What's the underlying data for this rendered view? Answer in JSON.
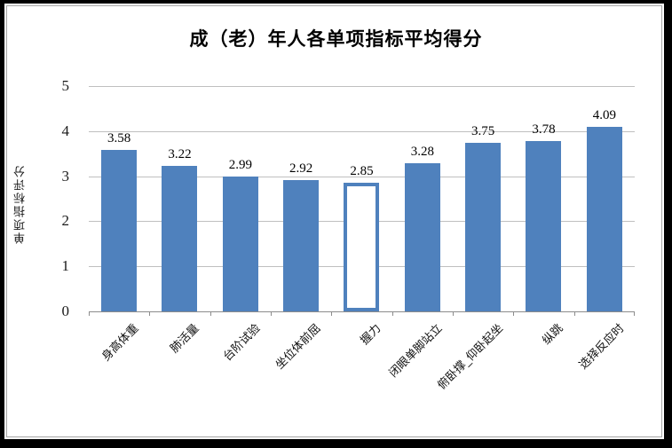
{
  "chart_data": {
    "type": "bar",
    "title": "成（老）年人各单项指标平均得分",
    "ylabel": "单项指标评分",
    "xlabel": "",
    "categories": [
      "身高体重",
      "肺活量",
      "台阶试验",
      "坐位体前屈",
      "握力",
      "闭眼单脚站立",
      "俯卧撑_仰卧起坐",
      "纵跳",
      "选择反应时"
    ],
    "values": [
      3.58,
      3.22,
      2.99,
      2.92,
      2.85,
      3.28,
      3.75,
      3.78,
      4.09
    ],
    "data_labels": [
      "3.58",
      "3.22",
      "2.99",
      "2.92",
      "2.85",
      "3.28",
      "3.75",
      "3.78",
      "4.09"
    ],
    "ylim": [
      0,
      5
    ],
    "y_ticks": [
      0,
      1,
      2,
      3,
      4,
      5
    ],
    "grid": true,
    "legend": "none",
    "highlighted_index": 4,
    "highlighted_category": "握力",
    "highlight_style": "hollow-outline",
    "colors": {
      "bar_fill": "#4f81bd",
      "bar_outline": "#4f81bd",
      "gridline": "#bfbfbf",
      "axis_line": "#8c8c8c",
      "text": "#000000",
      "frame_outer": "#000000",
      "frame_inner": "#a6a6a6",
      "background": "#ffffff"
    }
  }
}
